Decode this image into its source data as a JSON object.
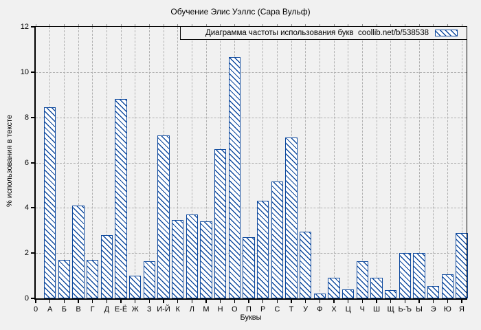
{
  "title": "Обучение Элис Уэллс (Сара Вульф)",
  "legend": {
    "label": "Диаграмма частоты использования букв  coollib.net/b/538538",
    "swatch_icon": "hatched-bar-sample"
  },
  "chart_data": {
    "type": "bar",
    "title": "Обучение Элис Уэллс (Сара Вульф)",
    "xlabel": "Буквы",
    "ylabel": "% использования в тексте",
    "x_origin_label": "0",
    "categories": [
      "А",
      "Б",
      "В",
      "Г",
      "Д",
      "Е-Ё",
      "Ж",
      "З",
      "И-Й",
      "К",
      "Л",
      "М",
      "Н",
      "О",
      "П",
      "Р",
      "С",
      "Т",
      "У",
      "Ф",
      "Х",
      "Ц",
      "Ч",
      "Ш",
      "Щ",
      "Ь-Ъ",
      "Ы",
      "Э",
      "Ю",
      "Я"
    ],
    "values": [
      8.45,
      1.7,
      4.1,
      1.7,
      2.8,
      8.8,
      1.0,
      1.65,
      7.2,
      3.45,
      3.7,
      3.4,
      6.6,
      10.65,
      2.7,
      4.3,
      5.15,
      7.1,
      2.95,
      0.2,
      0.9,
      0.4,
      1.65,
      0.9,
      0.35,
      2.0,
      2.0,
      0.55,
      1.05,
      2.9
    ],
    "ylim": [
      0,
      12
    ],
    "yticks": [
      0,
      2,
      4,
      6,
      8,
      10,
      12
    ],
    "grid": true,
    "legend_label": "Диаграмма частоты использования букв  coollib.net/b/538538",
    "legend_position": "top-right-inside",
    "colors": {
      "bar_edge": "#0f4a9e",
      "bar_hatch": "#0f4a9e",
      "bar_fill": "#ffffff",
      "background": "#f1f1f1",
      "grid": "#b0b0b0",
      "axis": "#000000"
    }
  }
}
